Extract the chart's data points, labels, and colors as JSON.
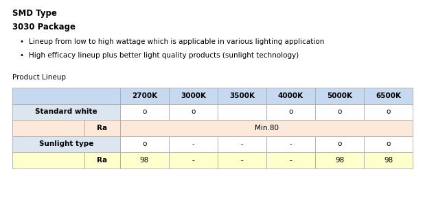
{
  "title1": "SMD Type",
  "title2": "3030 Package",
  "bullets": [
    "Lineup from low to high wattage which is applicable in various lighting application",
    "High efficacy lineup plus better light quality products (sunlight technology)"
  ],
  "table_label": "Product Lineup",
  "col_headers": [
    "2700K",
    "3000K",
    "3500K",
    "4000K",
    "5000K",
    "6500K"
  ],
  "header_bg": "#c5d9f1",
  "sw_label_bg": "#dce6f1",
  "ra1_bg": "#fde9d9",
  "st_label_bg": "#dce6f1",
  "ra2_bg": "#ffffcc",
  "white_bg": "#ffffff",
  "border_color": "#aaaaaa",
  "row1_values": [
    "o",
    "o",
    "",
    "o",
    "o",
    "o"
  ],
  "row2_merged": "Min.80",
  "row3_values": [
    "o",
    "-",
    "-",
    "-",
    "o",
    "o"
  ],
  "row4_values": [
    "98",
    "-",
    "-",
    "-",
    "98",
    "98"
  ]
}
